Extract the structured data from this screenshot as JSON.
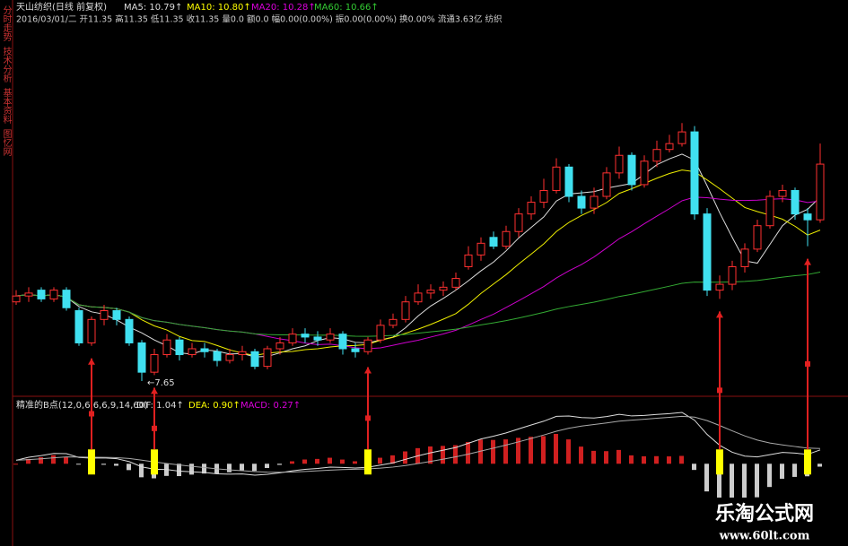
{
  "header": {
    "title": "天山纺织(日线 前复权)",
    "ma5": "MA5: 10.79↑",
    "ma10": "MA10: 10.80↑",
    "ma20": "MA20: 10.28↑",
    "ma60": "MA60: 10.66↑",
    "quote": "2016/03/01/二 开11.35 高11.35 低11.35 收11.35 量0.0 额0.0 幅0.00(0.00%) 振0.00(0.00%) 换0.00% 流通3.63亿 纺织"
  },
  "tabs": [
    "分时走势",
    "技术分析",
    "基本资料",
    "图忆网"
  ],
  "price": {
    "ylim": [
      7.42,
      14.15
    ],
    "low_label": "←7.65",
    "open": [
      9.0,
      9.1,
      9.2,
      9.05,
      9.2,
      8.85,
      8.3,
      8.7,
      8.85,
      8.7,
      8.3,
      7.8,
      8.1,
      8.35,
      8.1,
      8.2,
      8.15,
      8.0,
      8.1,
      8.15,
      7.9,
      8.2,
      8.3,
      8.45,
      8.4,
      8.35,
      8.45,
      8.2,
      8.15,
      8.35,
      8.6,
      8.7,
      9.0,
      9.15,
      9.2,
      9.25,
      9.6,
      9.8,
      10.1,
      9.95,
      10.2,
      10.5,
      10.7,
      10.9,
      11.3,
      10.8,
      10.6,
      10.8,
      11.2,
      11.5,
      11.0,
      11.4,
      11.6,
      11.7,
      11.9,
      10.5,
      9.2,
      9.3,
      9.6,
      9.9,
      10.3,
      10.8,
      10.9,
      10.5,
      10.4
    ],
    "high": [
      9.2,
      9.25,
      9.25,
      9.25,
      9.25,
      8.9,
      8.75,
      8.95,
      8.9,
      8.75,
      8.35,
      8.2,
      8.45,
      8.4,
      8.3,
      8.3,
      8.2,
      8.2,
      8.25,
      8.2,
      8.25,
      8.4,
      8.55,
      8.55,
      8.5,
      8.55,
      8.5,
      8.3,
      8.4,
      8.7,
      8.8,
      9.1,
      9.3,
      9.3,
      9.35,
      9.5,
      9.95,
      10.1,
      10.2,
      10.3,
      10.6,
      10.8,
      11.1,
      11.45,
      11.35,
      10.9,
      10.95,
      11.3,
      11.65,
      11.55,
      11.5,
      11.75,
      11.85,
      12.05,
      12.0,
      10.6,
      9.45,
      9.7,
      10.0,
      10.4,
      10.9,
      11.0,
      10.95,
      10.6,
      11.7
    ],
    "low": [
      8.95,
      9.0,
      9.0,
      9.0,
      8.85,
      8.25,
      8.25,
      8.6,
      8.6,
      8.25,
      7.65,
      7.75,
      8.05,
      8.0,
      8.05,
      8.05,
      7.9,
      7.95,
      8.0,
      7.85,
      7.85,
      8.1,
      8.25,
      8.3,
      8.25,
      8.3,
      8.1,
      8.05,
      8.1,
      8.3,
      8.55,
      8.65,
      8.95,
      9.05,
      9.1,
      9.2,
      9.55,
      9.7,
      9.9,
      9.9,
      10.1,
      10.4,
      10.6,
      10.85,
      10.7,
      10.5,
      10.5,
      10.75,
      11.1,
      10.9,
      10.95,
      11.3,
      11.55,
      11.65,
      10.4,
      9.1,
      9.05,
      9.2,
      9.5,
      9.85,
      10.25,
      10.7,
      10.4,
      9.95,
      10.35
    ],
    "close": [
      9.1,
      9.15,
      9.05,
      9.2,
      8.9,
      8.3,
      8.7,
      8.85,
      8.7,
      8.3,
      7.8,
      8.1,
      8.35,
      8.1,
      8.2,
      8.15,
      8.0,
      8.1,
      8.15,
      7.9,
      8.2,
      8.3,
      8.45,
      8.4,
      8.35,
      8.45,
      8.2,
      8.15,
      8.35,
      8.6,
      8.7,
      9.0,
      9.15,
      9.2,
      9.25,
      9.4,
      9.8,
      10.0,
      9.95,
      10.2,
      10.5,
      10.7,
      10.9,
      11.3,
      10.8,
      10.6,
      10.8,
      11.2,
      11.5,
      11.0,
      11.4,
      11.6,
      11.7,
      11.9,
      10.5,
      9.2,
      9.3,
      9.6,
      9.9,
      10.3,
      10.8,
      10.9,
      10.5,
      10.4,
      11.35
    ]
  },
  "indicator": {
    "title": "精准的B点(12,0,6,6,6,9,14,60)",
    "dif": "DIF: 1.04↑",
    "dea": "DEA: 0.90↑",
    "macd": "MACD: 0.27↑",
    "signal_indices": [
      6,
      11,
      28,
      56,
      63
    ]
  },
  "watermark": {
    "name": "乐淘公式网",
    "url": "www.60lt.com"
  }
}
